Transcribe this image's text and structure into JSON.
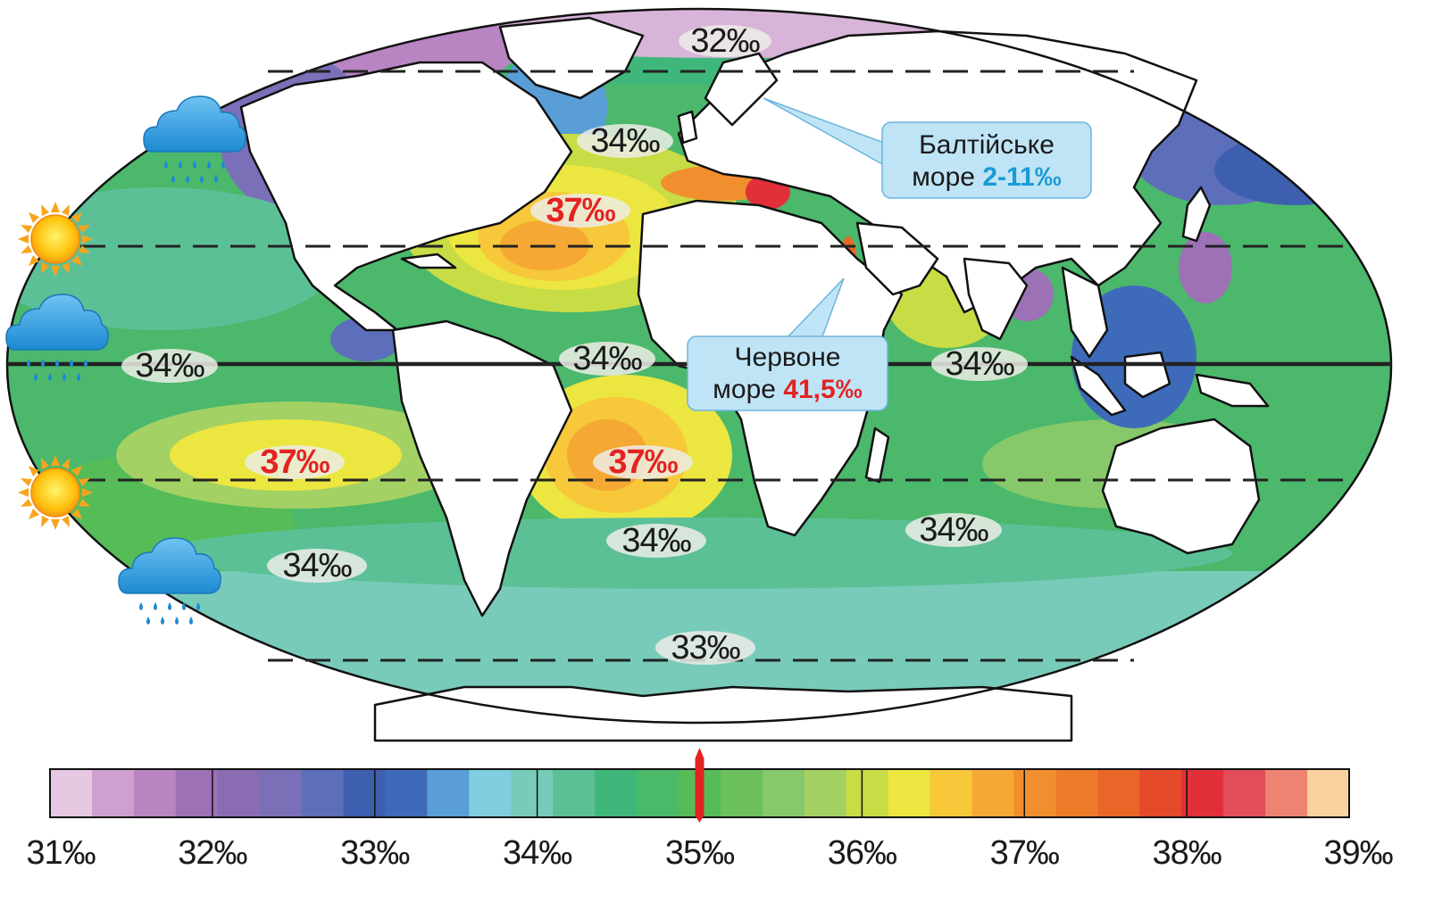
{
  "map": {
    "ocean_labels": [
      {
        "text": "32‰",
        "tone": "normal"
      },
      {
        "text": "34‰",
        "tone": "normal"
      },
      {
        "text": "37‰",
        "tone": "hot"
      },
      {
        "text": "34‰",
        "tone": "normal"
      },
      {
        "text": "34‰",
        "tone": "normal"
      },
      {
        "text": "34‰",
        "tone": "normal"
      },
      {
        "text": "37‰",
        "tone": "hot"
      },
      {
        "text": "37‰",
        "tone": "hot"
      },
      {
        "text": "34‰",
        "tone": "normal"
      },
      {
        "text": "34‰",
        "tone": "normal"
      },
      {
        "text": "34‰",
        "tone": "normal"
      },
      {
        "text": "33‰",
        "tone": "normal"
      }
    ],
    "callouts": {
      "baltic": {
        "line1": "Балтійське",
        "line2_prefix": "море ",
        "line2_value": "2-11‰",
        "value_color": "#1a9ad6"
      },
      "red_sea": {
        "line1": "Червоне",
        "line2_prefix": "море ",
        "line2_value": "41,5‰",
        "value_color": "#e32322"
      }
    },
    "weather_icons": [
      "rain-cloud-icon",
      "sun-icon",
      "rain-cloud-icon",
      "sun-icon",
      "rain-cloud-icon"
    ]
  },
  "legend": {
    "ticks": [
      "31‰",
      "32‰",
      "33‰",
      "34‰",
      "35‰",
      "36‰",
      "37‰",
      "38‰",
      "39‰"
    ],
    "marker_value": 35,
    "range": [
      31,
      39
    ],
    "colors": [
      "#e6c8e3",
      "#cf9fcf",
      "#b884c2",
      "#9c71b5",
      "#8a6cb3",
      "#7b70b8",
      "#5d6fba",
      "#3e5fb0",
      "#3d6bba",
      "#5a9ed8",
      "#7fcfe0",
      "#78cbb9",
      "#5cc097",
      "#3fb77a",
      "#4aba6a",
      "#55bc58",
      "#6cc05e",
      "#86c86a",
      "#a4d164",
      "#c8dc45",
      "#ece640",
      "#f6c83a",
      "#f5a834",
      "#f18e2e",
      "#ee7b2a",
      "#ea6528",
      "#e54a2a",
      "#e2303a",
      "#e34d5c",
      "#ef8373",
      "#fad2a0"
    ],
    "colors_note": "",
    "accent_marker": "#e32322"
  }
}
